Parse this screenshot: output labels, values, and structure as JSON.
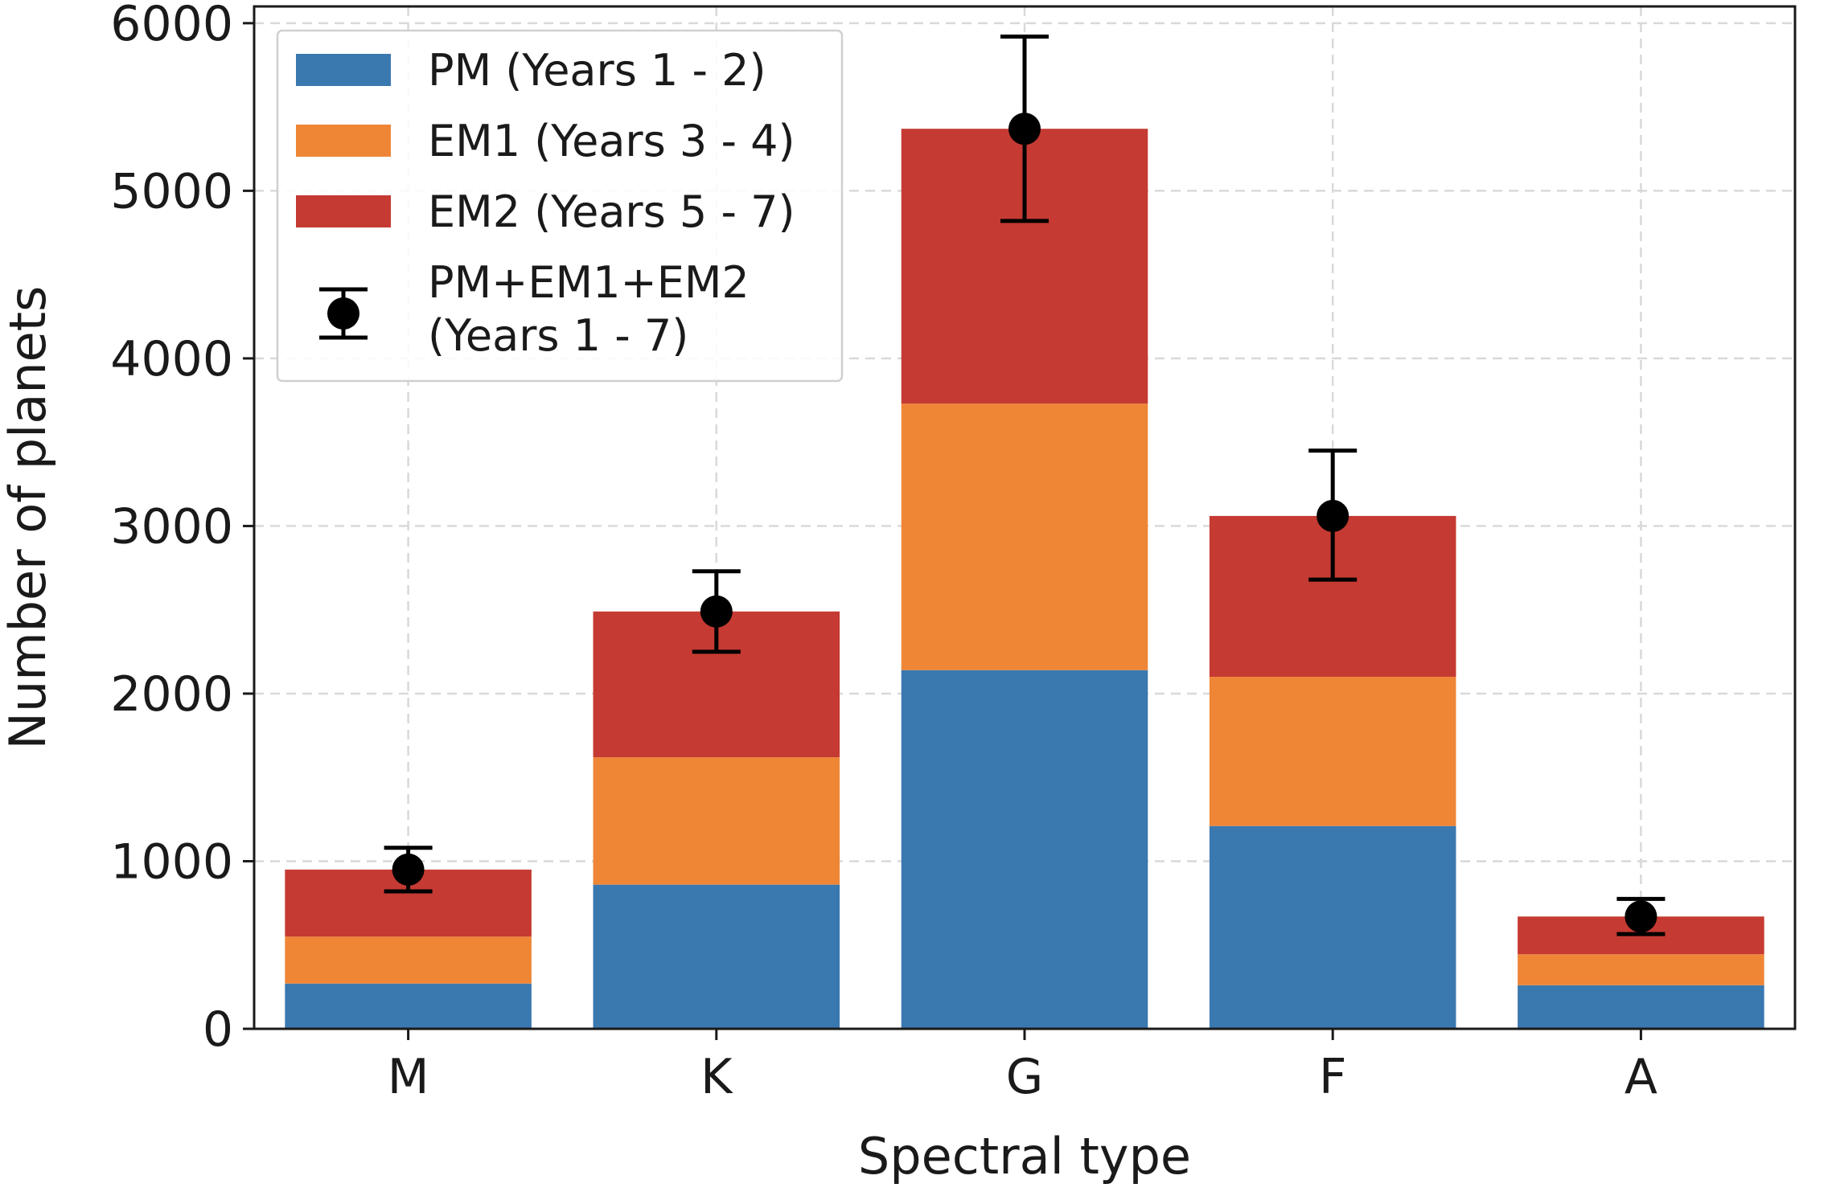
{
  "chart_data": {
    "type": "bar",
    "stacked": true,
    "categories": [
      "M",
      "K",
      "G",
      "F",
      "A"
    ],
    "series": [
      {
        "name": "PM (Years 1 - 2)",
        "color": "#3a78b0",
        "values": [
          270,
          860,
          2140,
          1210,
          260
        ]
      },
      {
        "name": "EM1 (Years 3 - 4)",
        "color": "#ef8636",
        "values": [
          280,
          760,
          1590,
          890,
          185
        ]
      },
      {
        "name": "EM2 (Years 5 - 7)",
        "color": "#c53a32",
        "values": [
          400,
          870,
          1640,
          960,
          225
        ]
      }
    ],
    "totals": {
      "name": "PM+EM1+EM2 (Years 1 - 7)",
      "name_lines": [
        "PM+EM1+EM2",
        "(Years 1 - 7)"
      ],
      "color": "#000000",
      "values": [
        950,
        2490,
        5370,
        3060,
        670
      ],
      "error_low": [
        820,
        2250,
        4820,
        2680,
        565
      ],
      "error_high": [
        1080,
        2730,
        5920,
        3450,
        775
      ]
    },
    "xlabel": "Spectral type",
    "ylabel": "Number of planets",
    "ylim": [
      0,
      6100
    ],
    "yticks": [
      "0",
      "1000",
      "2000",
      "3000",
      "4000",
      "5000",
      "6000"
    ],
    "ytick_values": [
      0,
      1000,
      2000,
      3000,
      4000,
      5000,
      6000
    ],
    "grid": true,
    "legend_position": "top-left"
  }
}
